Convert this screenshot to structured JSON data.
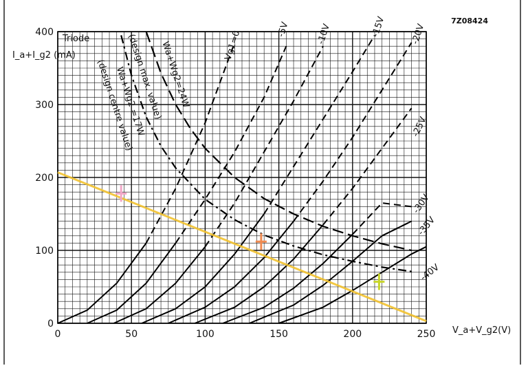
{
  "chart_data": {
    "type": "line",
    "code": "7Z08424",
    "panel_label": "Triode",
    "ylabel": "I_a+I_g2 (mA)",
    "xlabel": "V_a+V_g2(V)",
    "xlim": [
      0,
      250
    ],
    "ylim": [
      0,
      400
    ],
    "x_ticks": [
      "0",
      "50",
      "100",
      "150",
      "200",
      "250"
    ],
    "y_ticks": [
      "0",
      "100",
      "200",
      "300",
      "400"
    ],
    "grid": true,
    "series": [
      {
        "name": "Vg1=0",
        "style": "solid-dashed",
        "x": [
          0,
          20,
          40,
          60,
          80,
          90,
          100,
          110,
          120
        ],
        "y": [
          0,
          18,
          55,
          110,
          185,
          230,
          275,
          330,
          385
        ]
      },
      {
        "name": "-5V",
        "style": "solid-dashed",
        "x": [
          20,
          40,
          60,
          80,
          100,
          120,
          140,
          155
        ],
        "y": [
          0,
          18,
          55,
          110,
          170,
          235,
          310,
          380
        ]
      },
      {
        "name": "-10V",
        "style": "solid-dashed",
        "x": [
          38,
          60,
          80,
          100,
          120,
          140,
          160,
          180
        ],
        "y": [
          0,
          20,
          55,
          105,
          165,
          235,
          305,
          380
        ]
      },
      {
        "name": "-15V",
        "style": "solid-dashed",
        "x": [
          57,
          80,
          100,
          120,
          140,
          160,
          180,
          200,
          215
        ],
        "y": [
          0,
          20,
          50,
          95,
          150,
          215,
          280,
          345,
          395
        ]
      },
      {
        "name": "-20V",
        "style": "solid-dashed",
        "x": [
          75,
          100,
          120,
          140,
          160,
          180,
          200,
          220,
          240
        ],
        "y": [
          0,
          22,
          50,
          90,
          140,
          195,
          255,
          320,
          385
        ]
      },
      {
        "name": "-25V",
        "style": "solid-dashed",
        "x": [
          93,
          120,
          140,
          160,
          180,
          200,
          220,
          240
        ],
        "y": [
          0,
          22,
          50,
          88,
          135,
          185,
          240,
          295
        ]
      },
      {
        "name": "-30V",
        "style": "solid-dashed",
        "x": [
          112,
          140,
          160,
          180,
          200,
          220,
          240
        ],
        "y": [
          0,
          22,
          48,
          82,
          122,
          165,
          160
        ]
      },
      {
        "name": "-35V",
        "style": "solid-dashed",
        "x": [
          130,
          160,
          180,
          200,
          220,
          240
        ],
        "y": [
          0,
          25,
          52,
          85,
          120,
          140
        ]
      },
      {
        "name": "-40V",
        "style": "solid-dashed",
        "x": [
          150,
          180,
          200,
          220,
          240,
          250
        ],
        "y": [
          0,
          22,
          45,
          70,
          95,
          105
        ]
      },
      {
        "name": "Wa+Wg2=24W (design max. value)",
        "style": "dashed",
        "x": [
          60,
          70,
          80,
          90,
          100,
          120,
          140,
          160,
          180,
          200,
          220,
          240
        ],
        "y": [
          400,
          343,
          300,
          267,
          240,
          200,
          171,
          150,
          133,
          120,
          109,
          100
        ]
      },
      {
        "name": "Wa+Wg2 =17W (design centre value)",
        "style": "dash-dot",
        "x": [
          43,
          50,
          60,
          70,
          80,
          100,
          120,
          140,
          160,
          180,
          200,
          220,
          240
        ],
        "y": [
          395,
          340,
          283,
          243,
          213,
          170,
          142,
          121,
          106,
          94,
          85,
          77,
          71
        ]
      },
      {
        "name": "",
        "style": "overlay-yellow",
        "x": [
          0,
          250
        ],
        "y": [
          207,
          3
        ]
      }
    ],
    "markers": [
      {
        "x": 43,
        "y": 178,
        "color": "#f2a7c7"
      },
      {
        "x": 138,
        "y": 112,
        "color": "#f08a50"
      },
      {
        "x": 218,
        "y": 57,
        "color": "#c8d62a"
      }
    ],
    "annotations": [
      {
        "text": "Vg1=0",
        "x": 117,
        "y": 360,
        "rotate": -72
      },
      {
        "text": "-5V",
        "x": 153,
        "y": 392,
        "rotate": -72
      },
      {
        "text": "-10V",
        "x": 180,
        "y": 382,
        "rotate": -72
      },
      {
        "text": "-15V",
        "x": 217,
        "y": 392,
        "rotate": -72
      },
      {
        "text": "-20V",
        "x": 244,
        "y": 382,
        "rotate": -72
      },
      {
        "text": "-25V",
        "x": 244,
        "y": 255,
        "rotate": -65
      },
      {
        "text": "-30V",
        "x": 244,
        "y": 150,
        "rotate": -55
      },
      {
        "text": "-35V",
        "x": 247,
        "y": 120,
        "rotate": -50
      },
      {
        "text": "-40V",
        "x": 248,
        "y": 58,
        "rotate": -38
      },
      {
        "text": "Wa+Wg2=24W",
        "x": 71,
        "y": 385,
        "rotate": 72
      },
      {
        "text": "(design max. value)",
        "x": 48,
        "y": 395,
        "rotate": 72
      },
      {
        "text": "Wa+Wg2 =17W",
        "x": 40,
        "y": 350,
        "rotate": 72
      },
      {
        "text": "(design centre value)",
        "x": 27,
        "y": 360,
        "rotate": 72
      }
    ]
  }
}
